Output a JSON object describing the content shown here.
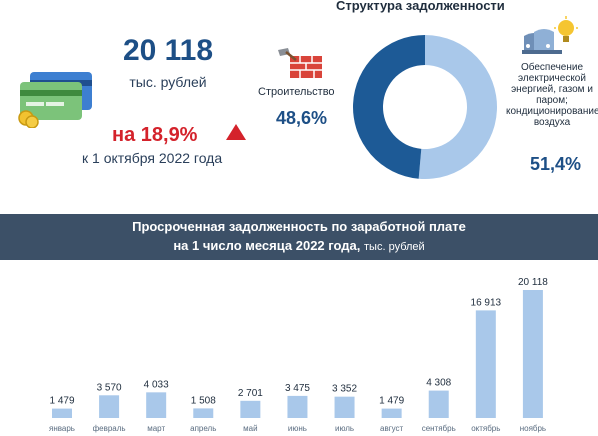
{
  "summary": {
    "total_value": "20 118",
    "total_units": "тыс. рублей",
    "change_text": "на 18,9%",
    "date_note": "к 1 октября 2022 года"
  },
  "structure": {
    "title": "Структура задолженности",
    "segments": [
      {
        "label": "Строительство",
        "percent_text": "48,6%",
        "value": 48.6,
        "icon": "brick-wall-icon",
        "color": "#1d5a96"
      },
      {
        "label": "Обеспечение электрической энергией, газом и паром; кондиционирование воздуха",
        "label_lines": [
          "Обеспечение",
          "электрической",
          "энергией, газом и",
          "паром;",
          "кондиционирование",
          "воздуха"
        ],
        "percent_text": "51,4%",
        "value": 51.4,
        "icon": "power-plant-icon",
        "color": "#a9c8ea"
      }
    ]
  },
  "banner": {
    "line1": "Просроченная задолженность по заработной плате",
    "line2": "на 1 число месяца 2022 года,",
    "line2_unit": "тыс. рублей"
  },
  "colors": {
    "bar": "#a9c8ea",
    "accent_red": "#d4222b",
    "banner": "#3c5067",
    "primary_blue": "#1d4f86"
  },
  "chart_data": {
    "type": "bar",
    "categories": [
      "январь",
      "февраль",
      "март",
      "апрель",
      "май",
      "июнь",
      "июль",
      "август",
      "сентябрь",
      "октябрь",
      "ноябрь"
    ],
    "values": [
      1479,
      3570,
      4033,
      1508,
      2701,
      3475,
      3352,
      1479,
      4308,
      16913,
      20118
    ],
    "value_labels": [
      "1 479",
      "3 570",
      "4 033",
      "1 508",
      "2 701",
      "3 475",
      "3 352",
      "1 479",
      "4 308",
      "16 913",
      "20 118"
    ],
    "ylim": [
      0,
      20118
    ],
    "grid": false
  }
}
